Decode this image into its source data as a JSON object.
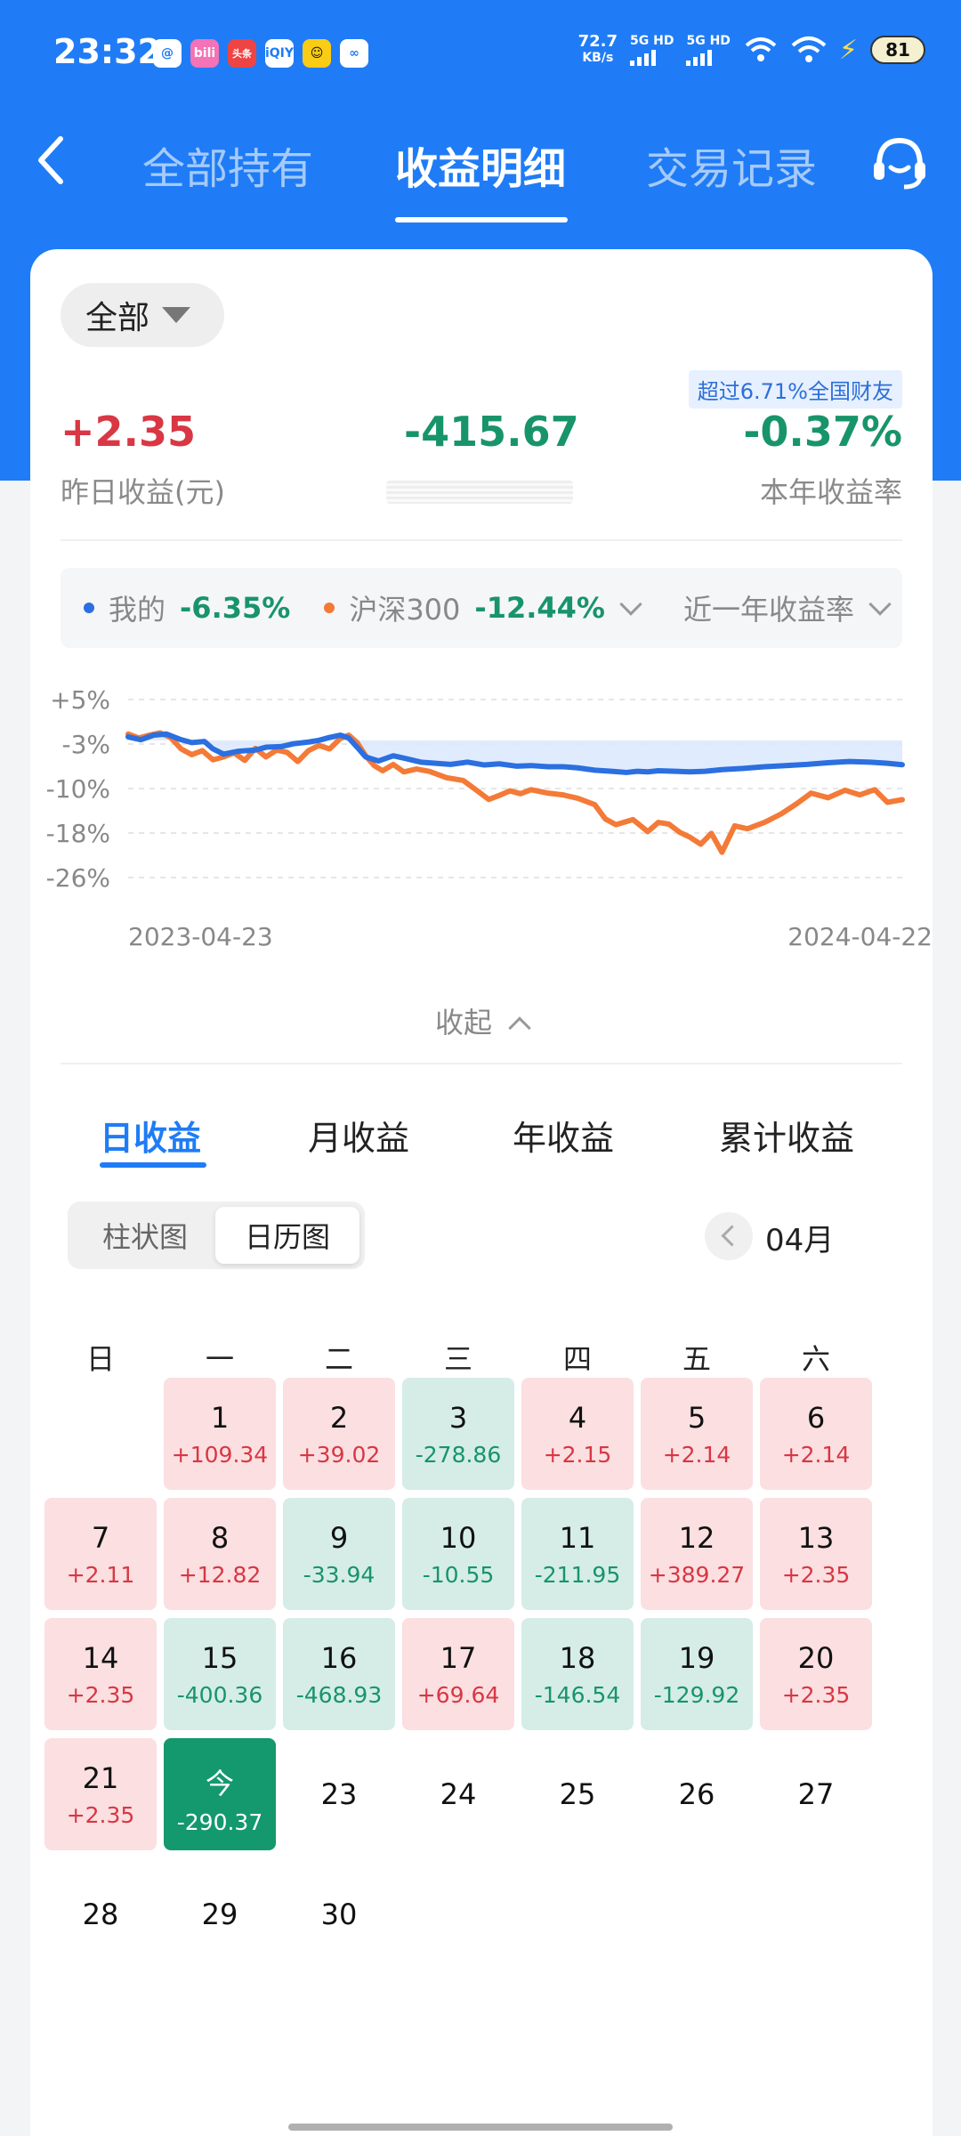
{
  "status_bar": {
    "time": "23:32",
    "app_icons": [
      "@",
      "bili",
      "头条",
      "iQIY",
      "☺",
      "∞"
    ],
    "net_speed": "72.7",
    "net_unit": "KB/s",
    "sim1": "5G HD",
    "sim2": "5G HD",
    "battery": "81"
  },
  "nav": {
    "tabs": [
      "全部持有",
      "收益明细",
      "交易记录"
    ],
    "active_tab": "收益明细"
  },
  "summary": {
    "filter": "全部",
    "rank_badge": "超过6.71%全国财友",
    "yesterday_value": "+2.35",
    "yesterday_label": "昨日收益(元)",
    "total_value": "-415.67",
    "year_rate_value": "-0.37%",
    "year_rate_label": "本年收益率"
  },
  "legend": {
    "mine_label": "我的",
    "mine_value": "-6.35%",
    "index_label": "沪深300",
    "index_value": "-12.44%",
    "period_label": "近一年收益率"
  },
  "chart_data": {
    "type": "line",
    "x_start": "2023-04-23",
    "x_end": "2024-04-22",
    "y_ticks": [
      "+5%",
      "-3%",
      "-10%",
      "-18%",
      "-26%"
    ],
    "ylim": [
      -26,
      5
    ],
    "x_range": [
      0,
      365
    ],
    "grid": true,
    "series": [
      {
        "name": "我的",
        "color": "#2b6fe0",
        "x": [
          0,
          6,
          12,
          18,
          25,
          30,
          36,
          40,
          45,
          52,
          60,
          65,
          72,
          78,
          85,
          90,
          95,
          100,
          104,
          108,
          112,
          118,
          125,
          130,
          138,
          145,
          152,
          160,
          168,
          175,
          183,
          190,
          198,
          205,
          212,
          220,
          228,
          235,
          240,
          245,
          250,
          258,
          265,
          272,
          280,
          290,
          300,
          310,
          320,
          330,
          340,
          350,
          358,
          365
        ],
        "y": [
          -1.5,
          -2.0,
          -1.2,
          -1.0,
          -2.0,
          -2.5,
          -2.3,
          -3.6,
          -4.5,
          -4.0,
          -3.8,
          -3.3,
          -3.2,
          -2.7,
          -2.4,
          -2.1,
          -1.6,
          -1.2,
          -1.7,
          -3.3,
          -5.0,
          -5.7,
          -4.8,
          -5.2,
          -5.9,
          -6.1,
          -6.3,
          -5.9,
          -6.4,
          -6.2,
          -6.6,
          -6.5,
          -6.7,
          -6.7,
          -6.9,
          -7.3,
          -7.5,
          -7.7,
          -7.5,
          -7.6,
          -7.4,
          -7.5,
          -7.6,
          -7.5,
          -7.2,
          -7.0,
          -6.7,
          -6.5,
          -6.3,
          -6.0,
          -5.8,
          -5.9,
          -6.1,
          -6.35
        ]
      },
      {
        "name": "沪深300",
        "color": "#f47a37",
        "x": [
          0,
          5,
          10,
          15,
          20,
          25,
          30,
          35,
          40,
          45,
          50,
          55,
          60,
          65,
          70,
          75,
          80,
          85,
          90,
          95,
          100,
          104,
          108,
          112,
          116,
          120,
          125,
          130,
          136,
          142,
          150,
          158,
          165,
          170,
          175,
          180,
          185,
          190,
          198,
          205,
          212,
          220,
          225,
          230,
          238,
          245,
          250,
          255,
          260,
          265,
          270,
          275,
          280,
          286,
          292,
          300,
          308,
          315,
          322,
          330,
          338,
          345,
          352,
          358,
          365
        ],
        "y": [
          -1.0,
          -1.7,
          -1.2,
          -0.8,
          -1.6,
          -3.6,
          -4.6,
          -3.9,
          -5.5,
          -5.0,
          -4.3,
          -5.6,
          -3.5,
          -5.0,
          -3.8,
          -4.2,
          -5.8,
          -3.9,
          -3.0,
          -3.6,
          -1.8,
          -1.2,
          -2.5,
          -4.8,
          -6.5,
          -7.4,
          -6.3,
          -7.6,
          -7.1,
          -7.5,
          -8.6,
          -9.1,
          -11.0,
          -12.4,
          -11.7,
          -10.9,
          -11.4,
          -10.7,
          -11.3,
          -11.6,
          -12.2,
          -13.3,
          -15.8,
          -16.8,
          -15.9,
          -18.0,
          -16.4,
          -16.7,
          -18.1,
          -19.0,
          -20.2,
          -18.3,
          -21.6,
          -17.0,
          -17.5,
          -16.4,
          -14.9,
          -13.2,
          -11.3,
          -12.1,
          -10.8,
          -11.6,
          -10.7,
          -12.9,
          -12.44
        ]
      }
    ]
  },
  "collapse_label": "收起",
  "sub_tabs": [
    "日收益",
    "月收益",
    "年收益",
    "累计收益"
  ],
  "view_toggle": [
    "柱状图",
    "日历图"
  ],
  "month": "04月",
  "weekdays": [
    "日",
    "一",
    "二",
    "三",
    "四",
    "五",
    "六"
  ],
  "calendar": [
    {
      "d": "1",
      "v": "+109.34",
      "t": "up"
    },
    {
      "d": "2",
      "v": "+39.02",
      "t": "up"
    },
    {
      "d": "3",
      "v": "-278.86",
      "t": "down"
    },
    {
      "d": "4",
      "v": "+2.15",
      "t": "up"
    },
    {
      "d": "5",
      "v": "+2.14",
      "t": "up"
    },
    {
      "d": "6",
      "v": "+2.14",
      "t": "up"
    },
    {
      "d": "7",
      "v": "+2.11",
      "t": "up"
    },
    {
      "d": "8",
      "v": "+12.82",
      "t": "up"
    },
    {
      "d": "9",
      "v": "-33.94",
      "t": "down"
    },
    {
      "d": "10",
      "v": "-10.55",
      "t": "down"
    },
    {
      "d": "11",
      "v": "-211.95",
      "t": "down"
    },
    {
      "d": "12",
      "v": "+389.27",
      "t": "up"
    },
    {
      "d": "13",
      "v": "+2.35",
      "t": "up"
    },
    {
      "d": "14",
      "v": "+2.35",
      "t": "up"
    },
    {
      "d": "15",
      "v": "-400.36",
      "t": "down"
    },
    {
      "d": "16",
      "v": "-468.93",
      "t": "down"
    },
    {
      "d": "17",
      "v": "+69.64",
      "t": "up"
    },
    {
      "d": "18",
      "v": "-146.54",
      "t": "down"
    },
    {
      "d": "19",
      "v": "-129.92",
      "t": "down"
    },
    {
      "d": "20",
      "v": "+2.35",
      "t": "up"
    },
    {
      "d": "21",
      "v": "+2.35",
      "t": "up"
    },
    {
      "d": "今",
      "v": "-290.37",
      "t": "today"
    },
    {
      "d": "23",
      "v": "",
      "t": "plain"
    },
    {
      "d": "24",
      "v": "",
      "t": "plain"
    },
    {
      "d": "25",
      "v": "",
      "t": "plain"
    },
    {
      "d": "26",
      "v": "",
      "t": "plain"
    },
    {
      "d": "27",
      "v": "",
      "t": "plain"
    },
    {
      "d": "28",
      "v": "",
      "t": "plain"
    },
    {
      "d": "29",
      "v": "",
      "t": "plain"
    },
    {
      "d": "30",
      "v": "",
      "t": "plain"
    }
  ]
}
